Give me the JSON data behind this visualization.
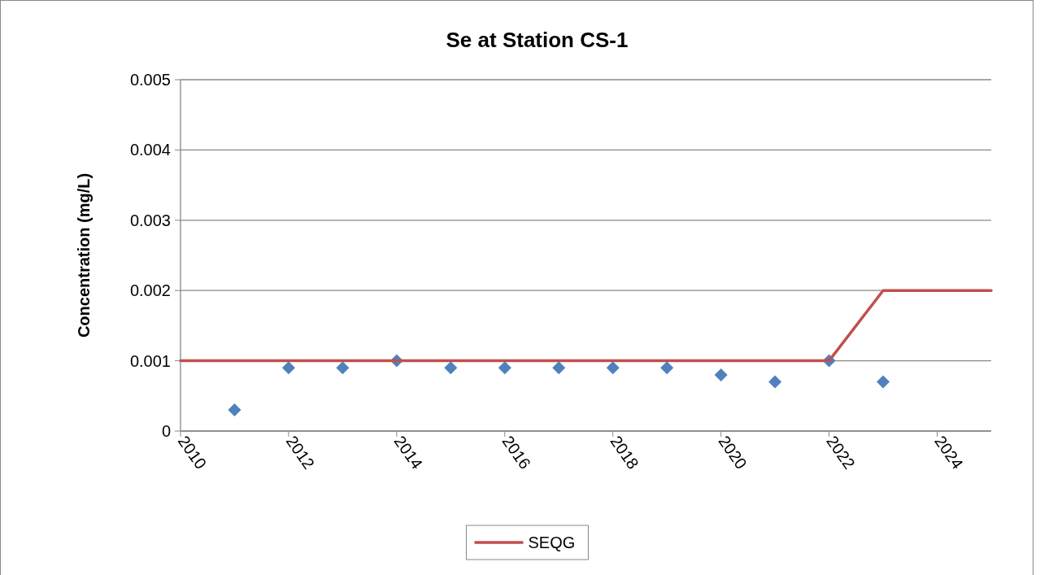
{
  "chart_data": {
    "type": "scatter",
    "title": "Se at Station CS-1",
    "ylabel": "Concentration (mg/L)",
    "xlim": [
      2010,
      2025
    ],
    "xticks": [
      2010,
      2012,
      2014,
      2016,
      2018,
      2020,
      2022,
      2024
    ],
    "ylim": [
      0,
      0.005
    ],
    "yticks": [
      0,
      0.001,
      0.002,
      0.003,
      0.004,
      0.005
    ],
    "grid": "y",
    "legend": "bottom",
    "series": [
      {
        "color": "#4f81bd",
        "marker": "diamond",
        "x": [
          2011,
          2012,
          2013,
          2014,
          2015,
          2016,
          2017,
          2018,
          2019,
          2020,
          2021,
          2022,
          2023
        ],
        "values": [
          0.0003,
          0.0009,
          0.0009,
          0.001,
          0.0009,
          0.0009,
          0.0009,
          0.0009,
          0.0009,
          0.0008,
          0.0007,
          0.001,
          0.0007
        ]
      },
      {
        "type": "line",
        "name": "SEQG",
        "color": "#c0504d",
        "marker": "none",
        "line_style": "solid",
        "x": [
          2010,
          2022,
          2023,
          2025
        ],
        "values": [
          0.001,
          0.001,
          0.002,
          0.002
        ]
      }
    ]
  }
}
